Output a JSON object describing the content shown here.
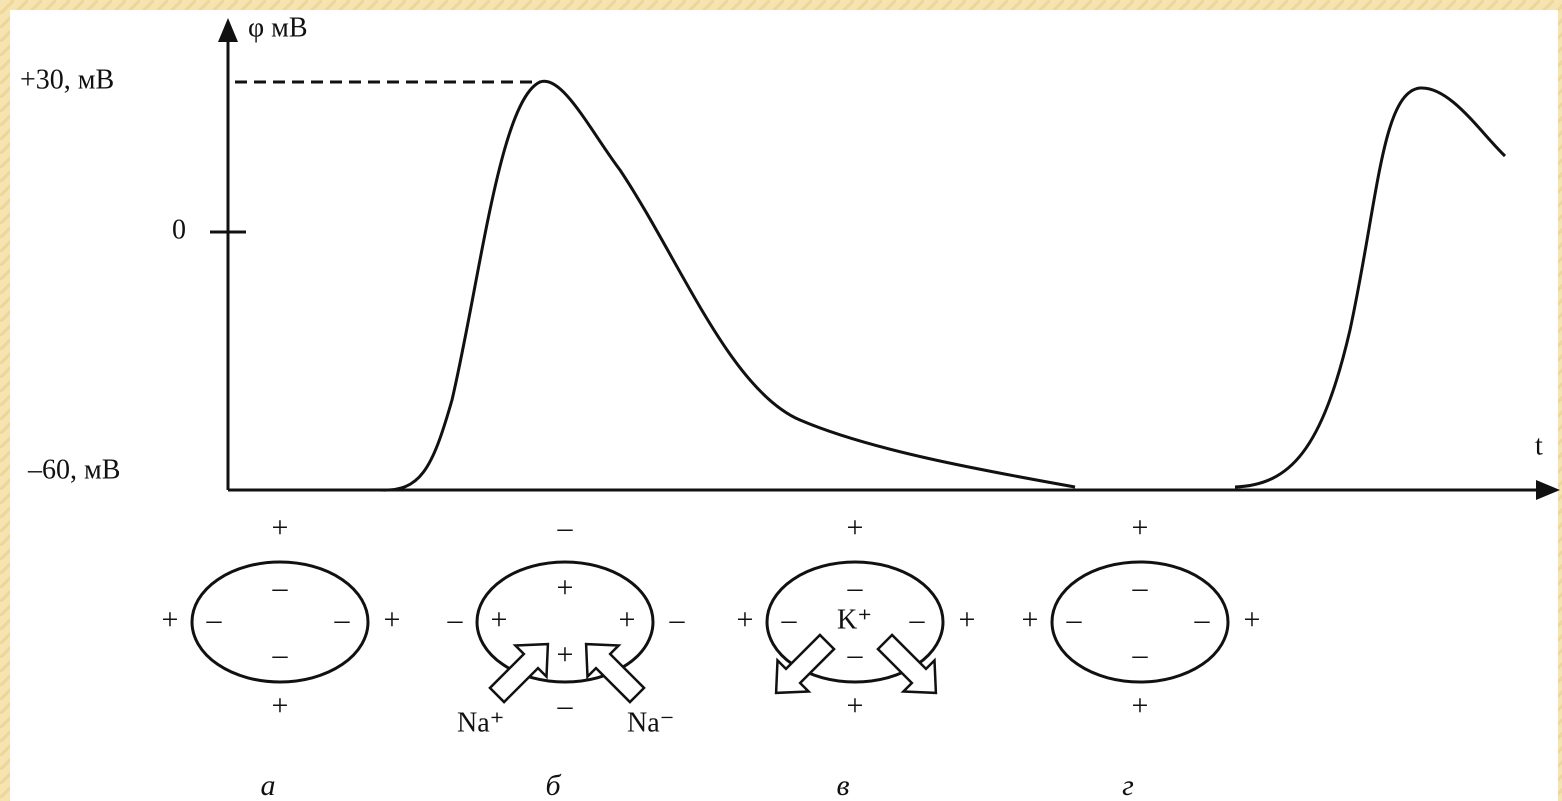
{
  "axes": {
    "y_label": "φ мВ",
    "x_label": "t",
    "y_ticks": [
      "+30, мВ",
      "0",
      "–60, мВ"
    ]
  },
  "cells": [
    {
      "outer": [
        "+",
        "+",
        "+",
        "+"
      ],
      "inner": [
        "–",
        "–",
        "–",
        "–"
      ],
      "label": "а"
    },
    {
      "outer": [
        "–",
        "–",
        "–",
        "–"
      ],
      "inner": [
        "+",
        "+",
        "+",
        "+"
      ],
      "ions": [
        "Na⁺",
        "Na⁻"
      ],
      "label": "б"
    },
    {
      "outer": [
        "+",
        "+",
        "+",
        "+"
      ],
      "inner": [
        "–",
        "–",
        "–",
        "–"
      ],
      "center": "K⁺",
      "label": "в"
    },
    {
      "outer": [
        "+",
        "+",
        "+",
        "+"
      ],
      "inner": [
        "–",
        "–",
        "–",
        "–"
      ],
      "label": "г"
    }
  ]
}
